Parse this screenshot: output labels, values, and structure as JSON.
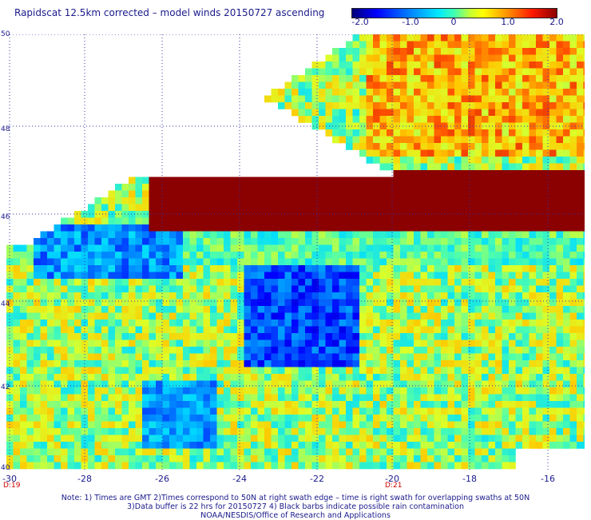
{
  "title": "Rapidscat 12.5km corrected – model winds 20150727 ascending",
  "colorbar": {
    "labels": [
      "-2.0",
      "-1.0",
      "0",
      "1.0",
      "2.0"
    ],
    "min": -2.0,
    "max": 2.0
  },
  "lat_labels": [
    "50",
    "48",
    "46",
    "44",
    "42",
    "40"
  ],
  "lon_labels": [
    "-30",
    "-28",
    "-26",
    "-24",
    "-22",
    "-20",
    "-18",
    "-16"
  ],
  "time_labels": [
    "D:19",
    "D:21"
  ],
  "notes": [
    "Note: 1) Times are GMT 2)Times correspond to 50N at right swath edge – time is right swath for overlapping swaths at 50N",
    "3)Data buffer is 22 hrs for 20150727 4) Black barbs indicate possible rain contamination",
    "NOAA/NESDIS/Office of Research and Applications"
  ],
  "colors": {
    "text": "#1a1a8c",
    "time_text": "#cc0000",
    "grid": "#3333aa"
  }
}
